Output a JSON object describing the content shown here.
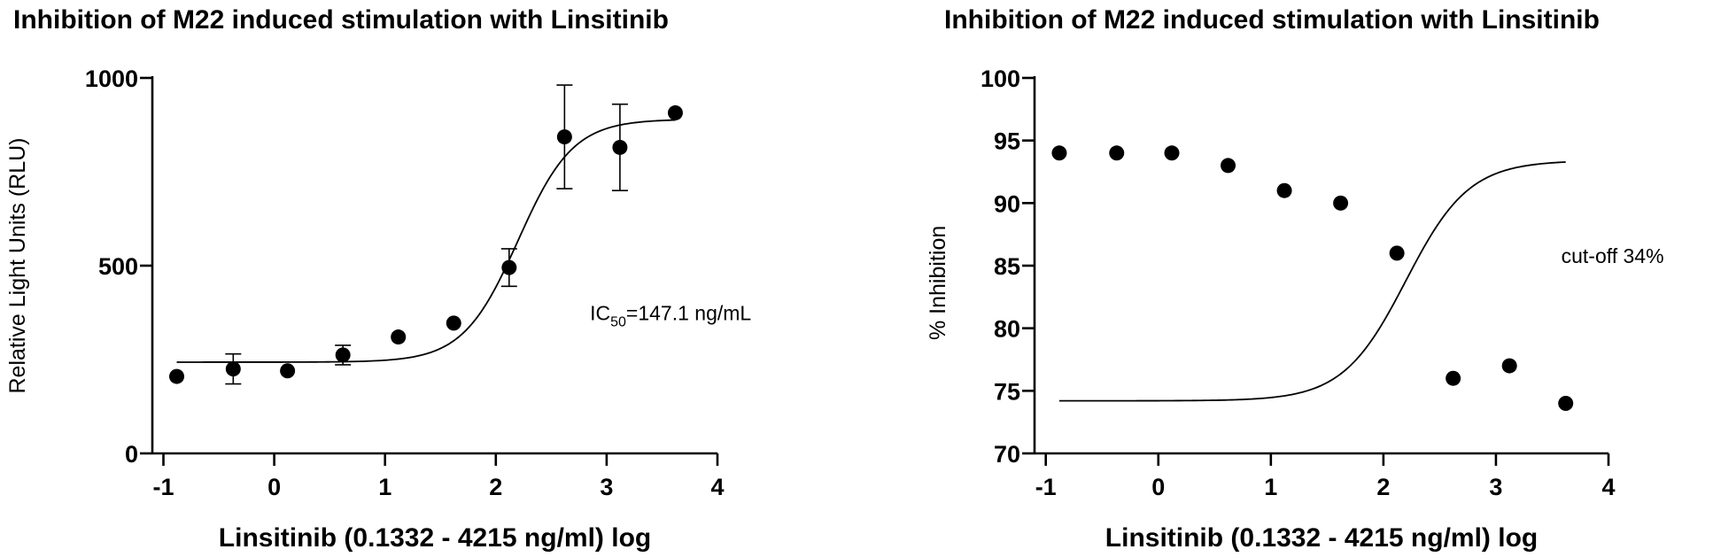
{
  "chart_data": [
    {
      "type": "scatter",
      "title": "Inhibition of M22 induced stimulation with Linsitinib",
      "xlabel": "Linsitinib (0.1332 - 4215 ng/ml) log",
      "ylabel": "Relative Light Units (RLU)",
      "xlim": [
        -1.1,
        4
      ],
      "ylim": [
        0,
        1000
      ],
      "xticks": [
        -1,
        0,
        1,
        2,
        3,
        4
      ],
      "xtick_labels": [
        "-1",
        "0",
        "1",
        "2",
        "3",
        "4"
      ],
      "yticks": [
        0,
        500,
        1000
      ],
      "ytick_labels": [
        "0",
        "500",
        "1000"
      ],
      "grid": false,
      "annotation": {
        "prefix": "IC",
        "subscript": "50",
        "suffix": "=147.1 ng/mL",
        "x": 2.85,
        "y": 355
      },
      "series": [
        {
          "points": [
            {
              "x": -0.88,
              "y": 205
            },
            {
              "x": -0.37,
              "y": 225,
              "err": 40
            },
            {
              "x": 0.12,
              "y": 220
            },
            {
              "x": 0.62,
              "y": 262,
              "err": 26
            },
            {
              "x": 1.12,
              "y": 310
            },
            {
              "x": 1.62,
              "y": 347
            },
            {
              "x": 2.12,
              "y": 495,
              "err": 50
            },
            {
              "x": 2.62,
              "y": 843,
              "err": 138
            },
            {
              "x": 3.12,
              "y": 815,
              "err": 115
            },
            {
              "x": 3.62,
              "y": 907
            }
          ],
          "fit": {
            "model": "4PL",
            "bottom": 243,
            "top": 890,
            "logEC50": 2.2,
            "hill": 1.75
          }
        }
      ]
    },
    {
      "type": "scatter",
      "title": "Inhibition of M22 induced stimulation with Linsitinib",
      "xlabel": "Linsitinib (0.1332 - 4215 ng/ml) log",
      "ylabel": "% Inhibition",
      "xlim": [
        -1.1,
        4
      ],
      "ylim": [
        70,
        100
      ],
      "xticks": [
        -1,
        0,
        1,
        2,
        3,
        4
      ],
      "xtick_labels": [
        "-1",
        "0",
        "1",
        "2",
        "3",
        "4"
      ],
      "yticks": [
        70,
        75,
        80,
        85,
        90,
        95,
        100
      ],
      "ytick_labels": [
        "70",
        "75",
        "80",
        "85",
        "90",
        "95",
        "100"
      ],
      "grid": false,
      "annotation": {
        "text": "cut-off 34%",
        "x": 3.58,
        "y": 85.2
      },
      "series": [
        {
          "points": [
            {
              "x": -0.88,
              "y": 94
            },
            {
              "x": -0.37,
              "y": 94
            },
            {
              "x": 0.12,
              "y": 94
            },
            {
              "x": 0.62,
              "y": 93
            },
            {
              "x": 1.12,
              "y": 91
            },
            {
              "x": 1.62,
              "y": 90
            },
            {
              "x": 2.12,
              "y": 86
            },
            {
              "x": 2.62,
              "y": 76
            },
            {
              "x": 3.12,
              "y": 77
            },
            {
              "x": 3.62,
              "y": 74
            }
          ],
          "fit": {
            "model": "4PL",
            "bottom": 74.2,
            "top": 93.4,
            "logEC50": 2.2,
            "hill": 1.55
          }
        }
      ]
    }
  ]
}
